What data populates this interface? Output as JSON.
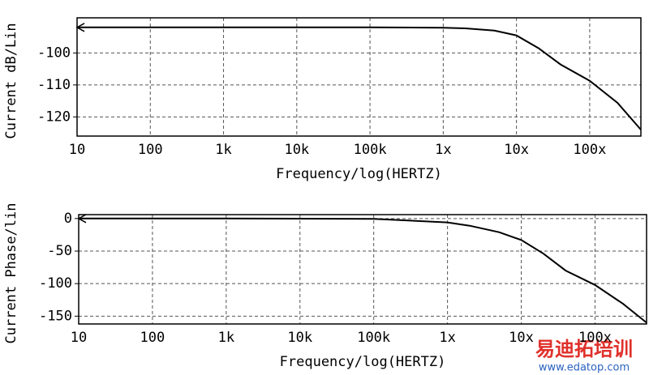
{
  "chart_data": [
    {
      "type": "line",
      "ylabel": "Current dB/Lin",
      "xlabel": "Frequency/log(HERTZ)",
      "xscale": "log",
      "grid": true,
      "color": "#000000",
      "xlim": [
        10,
        500000000
      ],
      "ylim": [
        -126,
        -89
      ],
      "xticks": [
        10,
        100,
        {
          "value": 1000,
          "label": "1k"
        },
        {
          "value": 10000,
          "label": "10k"
        },
        {
          "value": 100000,
          "label": "100k"
        },
        {
          "value": 1000000,
          "label": "1x"
        },
        {
          "value": 10000000,
          "label": "10x"
        },
        {
          "value": 100000000,
          "label": "100x"
        }
      ],
      "yticks": [
        -100,
        -110,
        -120
      ],
      "x": [
        10,
        1000,
        100000,
        1000000,
        2000000,
        5000000,
        10000000,
        20000000,
        40000000,
        100000000,
        240000000,
        500000000
      ],
      "values": [
        -92,
        -92,
        -92,
        -92.1,
        -92.3,
        -93,
        -94.5,
        -98.5,
        -103.6,
        -108.7,
        -115.6,
        -124
      ]
    },
    {
      "type": "line",
      "ylabel": "Current Phase/lin",
      "xlabel": "Frequency/log(HERTZ)",
      "xscale": "log",
      "grid": true,
      "color": "#000000",
      "xlim": [
        10,
        500000000
      ],
      "ylim": [
        -162,
        6
      ],
      "xticks": [
        10,
        100,
        {
          "value": 1000,
          "label": "1k"
        },
        {
          "value": 10000,
          "label": "10k"
        },
        {
          "value": 100000,
          "label": "100k"
        },
        {
          "value": 1000000,
          "label": "1x"
        },
        {
          "value": 10000000,
          "label": "10x"
        },
        {
          "value": 100000000,
          "label": "100x"
        }
      ],
      "yticks": [
        0,
        -50,
        -100,
        -150
      ],
      "x": [
        10,
        1000,
        100000,
        1000000,
        2000000,
        5000000,
        10000000,
        20000000,
        40000000,
        100000000,
        240000000,
        500000000
      ],
      "values": [
        0,
        0,
        -0.5,
        -6,
        -11,
        -21,
        -33,
        -54,
        -80,
        -102,
        -131,
        -160
      ]
    }
  ],
  "watermark": {
    "brand": "易迪拓培训",
    "url": "www.edatop.com"
  }
}
